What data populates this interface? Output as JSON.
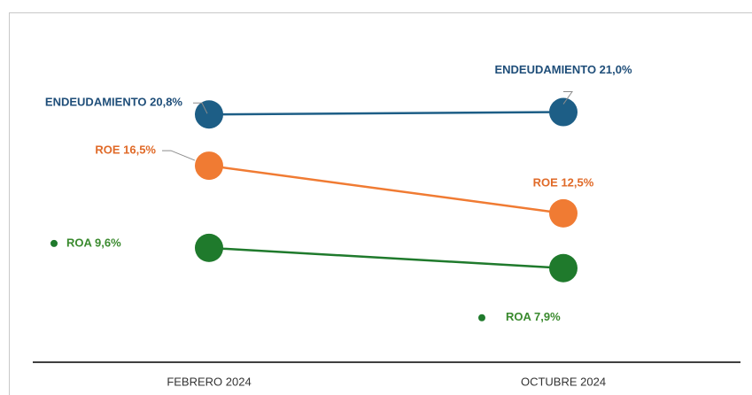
{
  "chart_data": {
    "type": "line",
    "categories": [
      "FEBRERO 2024",
      "OCTUBRE 2024"
    ],
    "series": [
      {
        "color": "#1d5e86",
        "label_color": "#1f4e79",
        "values": [
          20.8,
          21.0
        ],
        "value_labels": [
          "ENDEUDAMIENTO 20,8%",
          "ENDEUDAMIENTO 21,0%"
        ]
      },
      {
        "color": "#f07b33",
        "label_color": "#e06a28",
        "values": [
          16.5,
          12.5
        ],
        "value_labels": [
          "ROE 16,5%",
          "ROE 12,5%"
        ]
      },
      {
        "color": "#1f7a2c",
        "label_color": "#3a8a2e",
        "values": [
          9.6,
          7.9
        ],
        "value_labels": [
          "ROA 9,6%",
          "ROA 7,9%"
        ]
      }
    ]
  }
}
